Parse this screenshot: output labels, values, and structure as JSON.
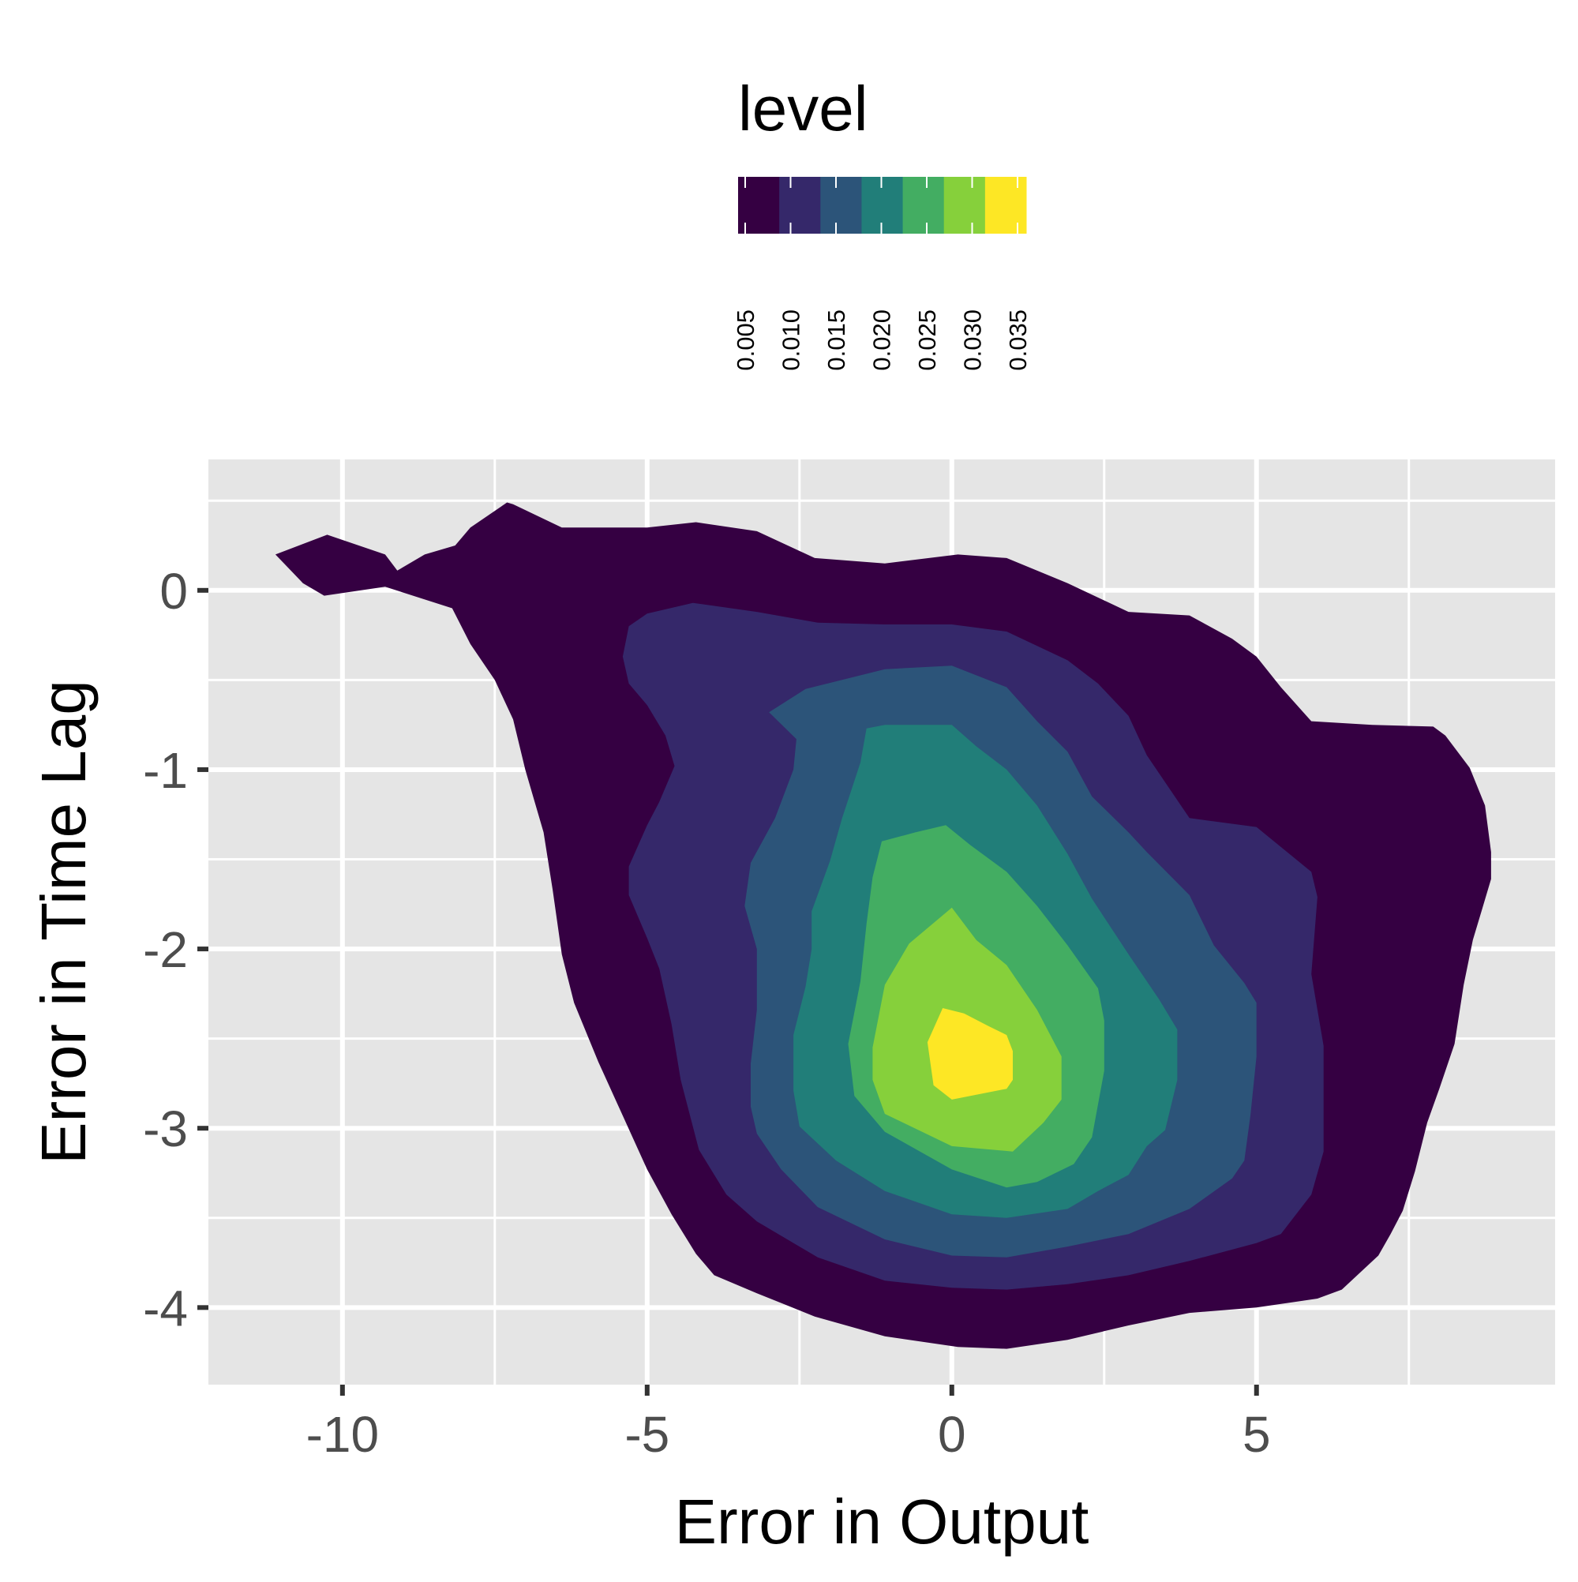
{
  "chart_data": {
    "type": "contour",
    "title": "",
    "xlabel": "Error in Output",
    "ylabel": "Error in Time Lag",
    "xlim": [
      -12.2,
      9.9
    ],
    "ylim": [
      -4.43,
      0.73
    ],
    "x_ticks": [
      {
        "value": -10,
        "label": "-10"
      },
      {
        "value": -5,
        "label": "-5"
      },
      {
        "value": 0,
        "label": "0"
      },
      {
        "value": 5,
        "label": "5"
      }
    ],
    "y_ticks": [
      {
        "value": 0,
        "label": "0"
      },
      {
        "value": -1,
        "label": "-1"
      },
      {
        "value": -2,
        "label": "-2"
      },
      {
        "value": -3,
        "label": "-3"
      },
      {
        "value": -4,
        "label": "-4"
      }
    ],
    "grid": true,
    "legend": {
      "title": "level",
      "position": "top",
      "breaks": [
        "0.005",
        "0.010",
        "0.015",
        "0.020",
        "0.025",
        "0.030",
        "0.035"
      ],
      "colors": [
        "#350042",
        "#35286a",
        "#2c5479",
        "#217e79",
        "#43ad62",
        "#86d03b",
        "#fde725"
      ]
    },
    "levels": [
      {
        "level": "0.005",
        "color": "#350042",
        "points": [
          [
            -11.1,
            0.2
          ],
          [
            -10.25,
            0.31
          ],
          [
            -9.3,
            0.2
          ],
          [
            -9.1,
            0.11
          ],
          [
            -8.65,
            0.2
          ],
          [
            -8.15,
            0.25
          ],
          [
            -7.9,
            0.35
          ],
          [
            -7.3,
            0.49
          ],
          [
            -7.2,
            0.48
          ],
          [
            -6.4,
            0.35
          ],
          [
            -5.0,
            0.35
          ],
          [
            -4.2,
            0.38
          ],
          [
            -3.2,
            0.33
          ],
          [
            -2.25,
            0.18
          ],
          [
            -1.1,
            0.15
          ],
          [
            0.1,
            0.2
          ],
          [
            0.9,
            0.18
          ],
          [
            1.9,
            0.04
          ],
          [
            2.9,
            -0.12
          ],
          [
            3.9,
            -0.14
          ],
          [
            4.6,
            -0.27
          ],
          [
            5.0,
            -0.37
          ],
          [
            5.4,
            -0.54
          ],
          [
            5.9,
            -0.73
          ],
          [
            6.9,
            -0.75
          ],
          [
            7.9,
            -0.76
          ],
          [
            8.1,
            -0.81
          ],
          [
            8.5,
            -0.99
          ],
          [
            8.75,
            -1.2
          ],
          [
            8.85,
            -1.46
          ],
          [
            8.85,
            -1.61
          ],
          [
            8.7,
            -1.78
          ],
          [
            8.55,
            -1.95
          ],
          [
            8.4,
            -2.2
          ],
          [
            8.25,
            -2.53
          ],
          [
            8.0,
            -2.78
          ],
          [
            7.8,
            -2.97
          ],
          [
            7.6,
            -3.24
          ],
          [
            7.4,
            -3.46
          ],
          [
            7.2,
            -3.59
          ],
          [
            7.0,
            -3.71
          ],
          [
            6.4,
            -3.9
          ],
          [
            6.0,
            -3.95
          ],
          [
            5.0,
            -4.0
          ],
          [
            3.9,
            -4.03
          ],
          [
            2.9,
            -4.1
          ],
          [
            1.9,
            -4.18
          ],
          [
            0.9,
            -4.23
          ],
          [
            0.1,
            -4.22
          ],
          [
            -1.1,
            -4.16
          ],
          [
            -2.25,
            -4.05
          ],
          [
            -3.2,
            -3.92
          ],
          [
            -3.9,
            -3.82
          ],
          [
            -4.2,
            -3.7
          ],
          [
            -4.6,
            -3.48
          ],
          [
            -5.0,
            -3.23
          ],
          [
            -5.4,
            -2.93
          ],
          [
            -5.8,
            -2.63
          ],
          [
            -6.2,
            -2.3
          ],
          [
            -6.4,
            -2.03
          ],
          [
            -6.55,
            -1.67
          ],
          [
            -6.7,
            -1.35
          ],
          [
            -7.0,
            -1.0
          ],
          [
            -7.2,
            -0.72
          ],
          [
            -7.5,
            -0.5
          ],
          [
            -7.9,
            -0.3
          ],
          [
            -8.2,
            -0.1
          ],
          [
            -9.3,
            0.02
          ],
          [
            -10.3,
            -0.03
          ],
          [
            -10.65,
            0.04
          ]
        ]
      },
      {
        "level": "0.010",
        "color": "#35286a",
        "points": [
          [
            -5.4,
            -0.37
          ],
          [
            -5.3,
            -0.2
          ],
          [
            -5.0,
            -0.13
          ],
          [
            -4.25,
            -0.07
          ],
          [
            -3.2,
            -0.12
          ],
          [
            -2.2,
            -0.18
          ],
          [
            -1.1,
            -0.19
          ],
          [
            0.0,
            -0.19
          ],
          [
            0.9,
            -0.23
          ],
          [
            1.9,
            -0.39
          ],
          [
            2.4,
            -0.52
          ],
          [
            2.9,
            -0.7
          ],
          [
            3.2,
            -0.92
          ],
          [
            3.9,
            -1.27
          ],
          [
            5.0,
            -1.32
          ],
          [
            5.9,
            -1.57
          ],
          [
            6.0,
            -1.71
          ],
          [
            5.9,
            -2.14
          ],
          [
            6.1,
            -2.54
          ],
          [
            6.1,
            -3.13
          ],
          [
            5.9,
            -3.37
          ],
          [
            5.4,
            -3.59
          ],
          [
            5.0,
            -3.64
          ],
          [
            3.9,
            -3.74
          ],
          [
            2.9,
            -3.82
          ],
          [
            1.9,
            -3.87
          ],
          [
            0.9,
            -3.9
          ],
          [
            0.0,
            -3.89
          ],
          [
            -1.1,
            -3.85
          ],
          [
            -2.2,
            -3.72
          ],
          [
            -3.2,
            -3.52
          ],
          [
            -3.7,
            -3.37
          ],
          [
            -4.15,
            -3.12
          ],
          [
            -4.45,
            -2.73
          ],
          [
            -4.6,
            -2.42
          ],
          [
            -4.8,
            -2.11
          ],
          [
            -5.0,
            -1.94
          ],
          [
            -5.3,
            -1.7
          ],
          [
            -5.3,
            -1.54
          ],
          [
            -5.0,
            -1.31
          ],
          [
            -4.8,
            -1.18
          ],
          [
            -4.55,
            -0.98
          ],
          [
            -4.7,
            -0.81
          ],
          [
            -5.0,
            -0.64
          ],
          [
            -5.3,
            -0.52
          ]
        ]
      },
      {
        "level": "0.015",
        "color": "#2c5479",
        "points": [
          [
            -3.0,
            -0.68
          ],
          [
            -2.4,
            -0.55
          ],
          [
            -1.1,
            -0.44
          ],
          [
            0.0,
            -0.42
          ],
          [
            0.9,
            -0.54
          ],
          [
            1.4,
            -0.73
          ],
          [
            1.9,
            -0.9
          ],
          [
            2.3,
            -1.15
          ],
          [
            2.9,
            -1.35
          ],
          [
            3.2,
            -1.46
          ],
          [
            3.9,
            -1.7
          ],
          [
            4.3,
            -1.98
          ],
          [
            4.8,
            -2.19
          ],
          [
            5.0,
            -2.3
          ],
          [
            5.0,
            -2.6
          ],
          [
            4.9,
            -2.93
          ],
          [
            4.8,
            -3.18
          ],
          [
            4.6,
            -3.28
          ],
          [
            3.9,
            -3.45
          ],
          [
            2.9,
            -3.59
          ],
          [
            1.9,
            -3.66
          ],
          [
            0.9,
            -3.72
          ],
          [
            0.0,
            -3.71
          ],
          [
            -1.1,
            -3.62
          ],
          [
            -2.2,
            -3.44
          ],
          [
            -2.8,
            -3.23
          ],
          [
            -3.2,
            -3.03
          ],
          [
            -3.3,
            -2.88
          ],
          [
            -3.3,
            -2.64
          ],
          [
            -3.2,
            -2.34
          ],
          [
            -3.2,
            -2.0
          ],
          [
            -3.4,
            -1.76
          ],
          [
            -3.3,
            -1.52
          ],
          [
            -2.9,
            -1.27
          ],
          [
            -2.6,
            -1.0
          ],
          [
            -2.55,
            -0.83
          ]
        ]
      },
      {
        "level": "0.020",
        "color": "#217e79",
        "points": [
          [
            -1.4,
            -0.77
          ],
          [
            -1.1,
            -0.75
          ],
          [
            0.0,
            -0.75
          ],
          [
            0.4,
            -0.87
          ],
          [
            0.9,
            -1.0
          ],
          [
            1.4,
            -1.2
          ],
          [
            1.9,
            -1.47
          ],
          [
            2.3,
            -1.72
          ],
          [
            2.9,
            -2.03
          ],
          [
            3.4,
            -2.28
          ],
          [
            3.7,
            -2.45
          ],
          [
            3.7,
            -2.73
          ],
          [
            3.5,
            -3.01
          ],
          [
            3.2,
            -3.1
          ],
          [
            2.9,
            -3.26
          ],
          [
            2.4,
            -3.35
          ],
          [
            1.9,
            -3.45
          ],
          [
            0.9,
            -3.5
          ],
          [
            0.0,
            -3.48
          ],
          [
            -1.1,
            -3.35
          ],
          [
            -1.9,
            -3.18
          ],
          [
            -2.5,
            -2.99
          ],
          [
            -2.6,
            -2.79
          ],
          [
            -2.6,
            -2.48
          ],
          [
            -2.4,
            -2.21
          ],
          [
            -2.3,
            -2.0
          ],
          [
            -2.3,
            -1.79
          ],
          [
            -2.0,
            -1.51
          ],
          [
            -1.8,
            -1.27
          ],
          [
            -1.5,
            -0.96
          ]
        ]
      },
      {
        "level": "0.025",
        "color": "#43ad62",
        "points": [
          [
            -1.15,
            -1.4
          ],
          [
            -0.6,
            -1.35
          ],
          [
            -0.1,
            -1.31
          ],
          [
            0.3,
            -1.42
          ],
          [
            0.9,
            -1.57
          ],
          [
            1.4,
            -1.76
          ],
          [
            1.9,
            -1.98
          ],
          [
            2.4,
            -2.22
          ],
          [
            2.5,
            -2.4
          ],
          [
            2.5,
            -2.68
          ],
          [
            2.3,
            -3.05
          ],
          [
            2.0,
            -3.2
          ],
          [
            1.4,
            -3.3
          ],
          [
            0.9,
            -3.33
          ],
          [
            0.0,
            -3.23
          ],
          [
            -1.1,
            -3.02
          ],
          [
            -1.6,
            -2.82
          ],
          [
            -1.7,
            -2.53
          ],
          [
            -1.5,
            -2.18
          ],
          [
            -1.4,
            -1.86
          ],
          [
            -1.3,
            -1.6
          ]
        ]
      },
      {
        "level": "0.030",
        "color": "#86d03b",
        "points": [
          [
            -0.7,
            -1.97
          ],
          [
            0.0,
            -1.77
          ],
          [
            0.4,
            -1.95
          ],
          [
            0.9,
            -2.09
          ],
          [
            1.4,
            -2.34
          ],
          [
            1.8,
            -2.6
          ],
          [
            1.8,
            -2.84
          ],
          [
            1.5,
            -2.97
          ],
          [
            1.0,
            -3.13
          ],
          [
            0.0,
            -3.1
          ],
          [
            -1.1,
            -2.92
          ],
          [
            -1.3,
            -2.73
          ],
          [
            -1.3,
            -2.55
          ],
          [
            -1.1,
            -2.2
          ]
        ]
      },
      {
        "level": "0.035",
        "color": "#fde725",
        "points": [
          [
            -0.15,
            -2.33
          ],
          [
            0.2,
            -2.36
          ],
          [
            0.6,
            -2.43
          ],
          [
            0.9,
            -2.48
          ],
          [
            1.0,
            -2.57
          ],
          [
            1.0,
            -2.73
          ],
          [
            0.9,
            -2.78
          ],
          [
            0.0,
            -2.84
          ],
          [
            -0.3,
            -2.76
          ],
          [
            -0.4,
            -2.52
          ]
        ]
      }
    ]
  }
}
